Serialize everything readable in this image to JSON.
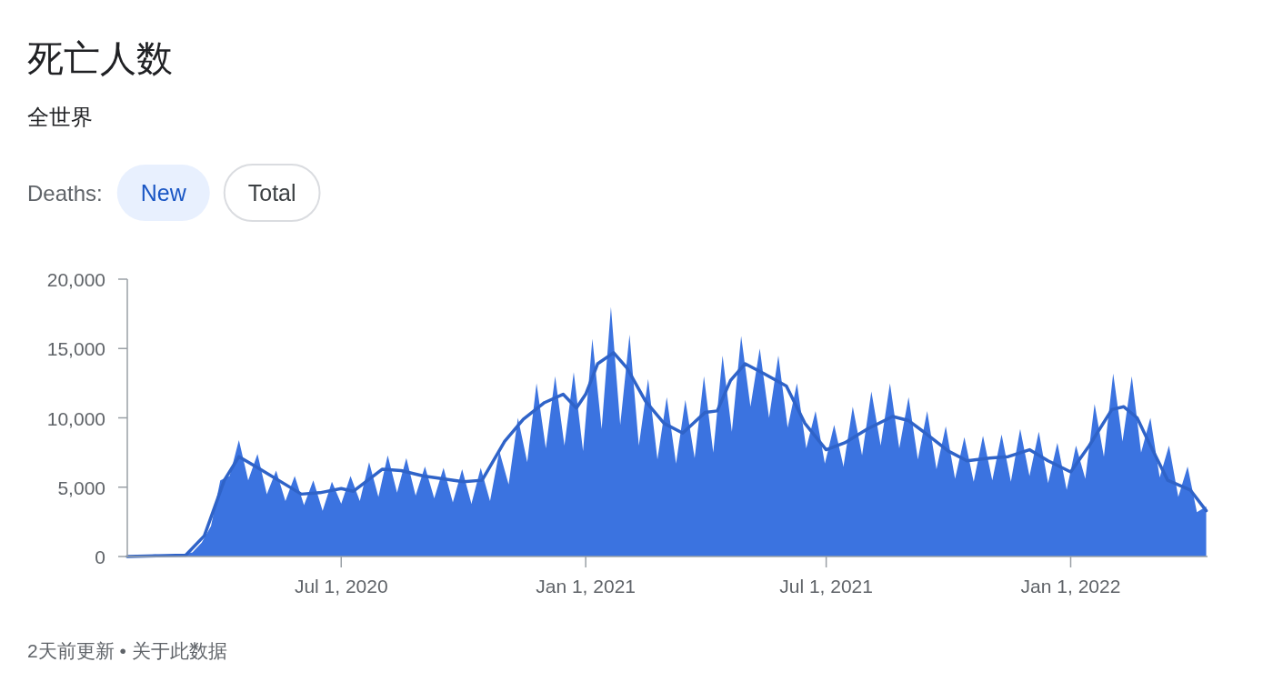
{
  "chart_data": {
    "type": "area",
    "title": "死亡人数",
    "subtitle": "全世界",
    "annotations": [
      "Deaths:",
      "New",
      "Total",
      "2天前更新 • 关于此数据"
    ],
    "xlim": [
      "2020-01-22",
      "2022-04-14"
    ],
    "xticks": [
      {
        "value": "2020-07-01",
        "label": "Jul 1, 2020"
      },
      {
        "value": "2021-01-01",
        "label": "Jan 1, 2021"
      },
      {
        "value": "2021-07-01",
        "label": "Jul 1, 2021"
      },
      {
        "value": "2022-01-01",
        "label": "Jan 1, 2022"
      }
    ],
    "ylim": [
      0,
      20000
    ],
    "yticks": [
      0,
      {
        "value": 5000,
        "label": "5,000"
      },
      {
        "value": 10000,
        "label": "10,000"
      },
      {
        "value": 15000,
        "label": "15,000"
      },
      {
        "value": 20000,
        "label": "20,000"
      }
    ],
    "grid": false,
    "series": [
      {
        "color": "#3b73e0",
        "x": [
          "2020-01-22",
          "2020-01-29",
          "2020-02-05",
          "2020-02-12",
          "2020-02-19",
          "2020-02-26",
          "2020-03-04",
          "2020-03-11",
          "2020-03-18",
          "2020-03-25",
          "2020-04-01",
          "2020-04-08",
          "2020-04-15",
          "2020-04-22",
          "2020-04-29",
          "2020-05-06",
          "2020-05-13",
          "2020-05-20",
          "2020-05-27",
          "2020-06-03",
          "2020-06-10",
          "2020-06-17",
          "2020-06-24",
          "2020-07-01",
          "2020-07-08",
          "2020-07-15",
          "2020-07-22",
          "2020-07-29",
          "2020-08-05",
          "2020-08-12",
          "2020-08-19",
          "2020-08-26",
          "2020-09-02",
          "2020-09-09",
          "2020-09-16",
          "2020-09-23",
          "2020-09-30",
          "2020-10-07",
          "2020-10-14",
          "2020-10-21",
          "2020-10-28",
          "2020-11-04",
          "2020-11-11",
          "2020-11-18",
          "2020-11-25",
          "2020-12-02",
          "2020-12-09",
          "2020-12-16",
          "2020-12-23",
          "2020-12-30",
          "2021-01-06",
          "2021-01-13",
          "2021-01-20",
          "2021-01-27",
          "2021-02-03",
          "2021-02-10",
          "2021-02-17",
          "2021-02-24",
          "2021-03-03",
          "2021-03-10",
          "2021-03-17",
          "2021-03-24",
          "2021-03-31",
          "2021-04-07",
          "2021-04-14",
          "2021-04-21",
          "2021-04-28",
          "2021-05-05",
          "2021-05-12",
          "2021-05-19",
          "2021-05-26",
          "2021-06-02",
          "2021-06-09",
          "2021-06-16",
          "2021-06-23",
          "2021-06-30",
          "2021-07-07",
          "2021-07-14",
          "2021-07-21",
          "2021-07-28",
          "2021-08-04",
          "2021-08-11",
          "2021-08-18",
          "2021-08-25",
          "2021-09-01",
          "2021-09-08",
          "2021-09-15",
          "2021-09-22",
          "2021-09-29",
          "2021-10-06",
          "2021-10-13",
          "2021-10-20",
          "2021-10-27",
          "2021-11-03",
          "2021-11-10",
          "2021-11-17",
          "2021-11-24",
          "2021-12-01",
          "2021-12-08",
          "2021-12-15",
          "2021-12-22",
          "2021-12-29",
          "2022-01-05",
          "2022-01-12",
          "2022-01-19",
          "2022-01-26",
          "2022-02-02",
          "2022-02-09",
          "2022-02-16",
          "2022-02-23",
          "2022-03-02",
          "2022-03-09",
          "2022-03-16",
          "2022-03-23",
          "2022-03-30",
          "2022-04-06",
          "2022-04-13"
        ],
        "values": [
          0,
          100,
          100,
          150,
          100,
          80,
          150,
          300,
          1000,
          2200,
          5500,
          5800,
          8400,
          5500,
          7400,
          4500,
          6200,
          4000,
          5800,
          3700,
          5500,
          3300,
          5400,
          3800,
          5800,
          4000,
          6800,
          4300,
          7300,
          4600,
          7100,
          4400,
          6500,
          4200,
          6400,
          3900,
          6300,
          3800,
          6400,
          4000,
          7600,
          5200,
          10000,
          6800,
          12500,
          7800,
          13000,
          8000,
          13300,
          7600,
          15700,
          9200,
          18000,
          9500,
          16000,
          8000,
          12800,
          7000,
          11500,
          6700,
          11300,
          7100,
          13000,
          7500,
          14500,
          9000,
          15900,
          10800,
          15000,
          10000,
          14500,
          9300,
          12500,
          7800,
          10500,
          6700,
          9500,
          6500,
          10800,
          7300,
          11900,
          8000,
          12500,
          7800,
          11500,
          7000,
          10500,
          6300,
          9400,
          5600,
          8600,
          5400,
          8700,
          5500,
          8800,
          5400,
          9200,
          5800,
          9000,
          5300,
          8200,
          4800,
          8000,
          5600,
          11000,
          7200,
          13200,
          8300,
          13000,
          7500,
          10000,
          5700,
          8000,
          4300,
          6500,
          3200,
          3600
        ]
      },
      {
        "type": "line",
        "color": "#2f63c8",
        "x": [
          "2020-01-22",
          "2020-03-06",
          "2020-03-20",
          "2020-04-04",
          "2020-04-15",
          "2020-05-01",
          "2020-06-01",
          "2020-06-15",
          "2020-07-01",
          "2020-07-10",
          "2020-08-01",
          "2020-08-15",
          "2020-09-01",
          "2020-10-01",
          "2020-10-15",
          "2020-11-01",
          "2020-11-15",
          "2020-12-01",
          "2020-12-15",
          "2020-12-25",
          "2021-01-01",
          "2021-01-10",
          "2021-01-22",
          "2021-02-01",
          "2021-02-15",
          "2021-03-01",
          "2021-03-15",
          "2021-04-01",
          "2021-04-10",
          "2021-04-20",
          "2021-05-01",
          "2021-05-15",
          "2021-06-01",
          "2021-06-15",
          "2021-07-01",
          "2021-07-15",
          "2021-08-01",
          "2021-08-20",
          "2021-09-01",
          "2021-09-15",
          "2021-10-01",
          "2021-10-15",
          "2021-11-01",
          "2021-11-15",
          "2021-12-01",
          "2021-12-15",
          "2022-01-01",
          "2022-01-15",
          "2022-02-01",
          "2022-02-10",
          "2022-02-20",
          "2022-03-01",
          "2022-03-15",
          "2022-04-01",
          "2022-04-13"
        ],
        "values": [
          0,
          100,
          1500,
          5500,
          7200,
          6300,
          4500,
          4600,
          4900,
          4700,
          6300,
          6200,
          5800,
          5400,
          5500,
          8300,
          9900,
          11100,
          11700,
          10700,
          11700,
          13900,
          14700,
          13600,
          11200,
          9600,
          8900,
          10400,
          10500,
          12700,
          13900,
          13200,
          12300,
          9600,
          7700,
          8200,
          9200,
          10100,
          9800,
          8800,
          7600,
          6900,
          7100,
          7200,
          7700,
          6900,
          6100,
          8000,
          10600,
          10800,
          10000,
          8200,
          5500,
          4800,
          3300
        ]
      }
    ]
  }
}
